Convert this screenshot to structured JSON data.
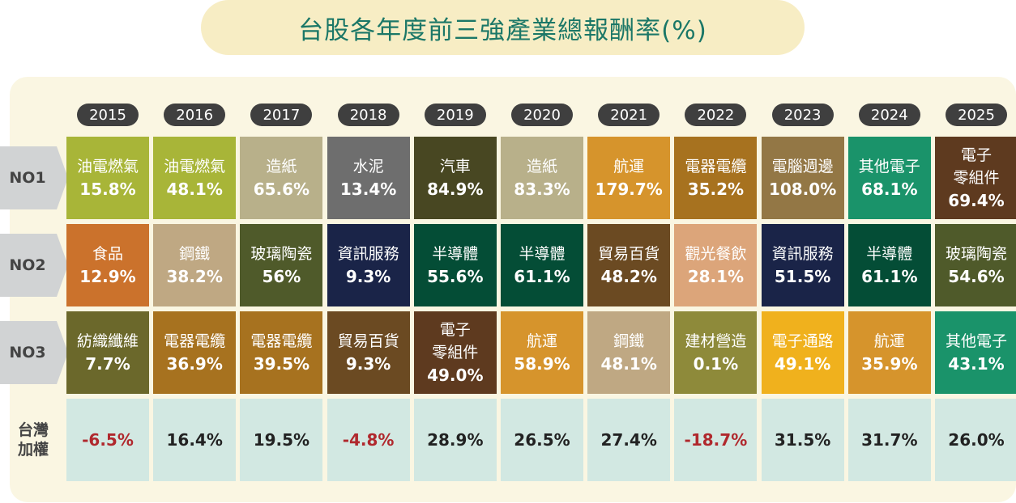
{
  "title": "台股各年度前三強產業總報酬率(%)",
  "chart_data": {
    "type": "table",
    "title": "台股各年度前三強產業總報酬率(%)",
    "years": [
      "2015",
      "2016",
      "2017",
      "2018",
      "2019",
      "2020",
      "2021",
      "2022",
      "2023",
      "2024",
      "2025"
    ],
    "row_labels": [
      "NO1",
      "NO2",
      "NO3"
    ],
    "index_label": "台灣\n加權",
    "rows": [
      [
        {
          "name": "油電燃氣",
          "value": "15.8%",
          "color": "#a8b538"
        },
        {
          "name": "油電燃氣",
          "value": "48.1%",
          "color": "#a8b538"
        },
        {
          "name": "造紙",
          "value": "65.6%",
          "color": "#b8b08a"
        },
        {
          "name": "水泥",
          "value": "13.4%",
          "color": "#6e6e6e"
        },
        {
          "name": "汽車",
          "value": "84.9%",
          "color": "#484722"
        },
        {
          "name": "造紙",
          "value": "83.3%",
          "color": "#b8b08a"
        },
        {
          "name": "航運",
          "value": "179.7%",
          "color": "#d6942c"
        },
        {
          "name": "電器電纜",
          "value": "35.2%",
          "color": "#a7721f"
        },
        {
          "name": "電腦週邊",
          "value": "108.0%",
          "color": "#937745"
        },
        {
          "name": "其他電子",
          "value": "68.1%",
          "color": "#1a936a"
        },
        {
          "name": "電子\n零組件",
          "value": "69.4%",
          "color": "#5e3a1f"
        }
      ],
      [
        {
          "name": "食品",
          "value": "12.9%",
          "color": "#cb722c"
        },
        {
          "name": "鋼鐵",
          "value": "38.2%",
          "color": "#bfa883"
        },
        {
          "name": "玻璃陶瓷",
          "value": "56%",
          "color": "#4f5a2a"
        },
        {
          "name": "資訊服務",
          "value": "9.3%",
          "color": "#1a2448"
        },
        {
          "name": "半導體",
          "value": "55.6%",
          "color": "#044d36"
        },
        {
          "name": "半導體",
          "value": "61.1%",
          "color": "#044d36"
        },
        {
          "name": "貿易百貨",
          "value": "48.2%",
          "color": "#6b4a22"
        },
        {
          "name": "觀光餐飲",
          "value": "28.1%",
          "color": "#dca57a"
        },
        {
          "name": "資訊服務",
          "value": "51.5%",
          "color": "#1a2448"
        },
        {
          "name": "半導體",
          "value": "61.1%",
          "color": "#044d36"
        },
        {
          "name": "玻璃陶瓷",
          "value": "54.6%",
          "color": "#4f5a2a"
        }
      ],
      [
        {
          "name": "紡織纖維",
          "value": "7.7%",
          "color": "#6b682b"
        },
        {
          "name": "電器電纜",
          "value": "36.9%",
          "color": "#a7721f"
        },
        {
          "name": "電器電纜",
          "value": "39.5%",
          "color": "#a7721f"
        },
        {
          "name": "貿易百貨",
          "value": "9.3%",
          "color": "#6b4a22"
        },
        {
          "name": "電子\n零組件",
          "value": "49.0%",
          "color": "#5e3a1f"
        },
        {
          "name": "航運",
          "value": "58.9%",
          "color": "#d6942c"
        },
        {
          "name": "鋼鐵",
          "value": "48.1%",
          "color": "#bfa883"
        },
        {
          "name": "建材營造",
          "value": "0.1%",
          "color": "#8e8a3a"
        },
        {
          "name": "電子通路",
          "value": "49.1%",
          "color": "#f0b11d"
        },
        {
          "name": "航運",
          "value": "35.9%",
          "color": "#d6942c"
        },
        {
          "name": "其他電子",
          "value": "43.1%",
          "color": "#1a936a"
        }
      ]
    ],
    "index_values": [
      "-6.5%",
      "16.4%",
      "19.5%",
      "-4.8%",
      "28.9%",
      "26.5%",
      "27.4%",
      "-18.7%",
      "31.5%",
      "31.7%",
      "26.0%"
    ]
  }
}
